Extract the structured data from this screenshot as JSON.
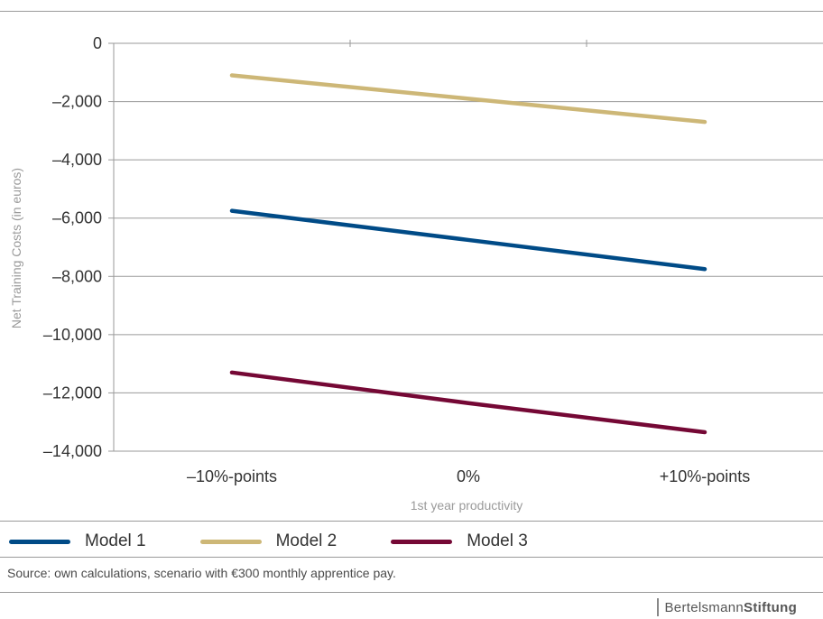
{
  "chart_data": {
    "type": "line",
    "categories": [
      "–10%-points",
      "0%",
      "+10%-points"
    ],
    "series": [
      {
        "name": "Model 1",
        "values": [
          -5750,
          -6750,
          -7750
        ],
        "color": "#004b87"
      },
      {
        "name": "Model 2",
        "values": [
          -1100,
          -1900,
          -2700
        ],
        "color": "#cdb777"
      },
      {
        "name": "Model 3",
        "values": [
          -11300,
          -12350,
          -13350
        ],
        "color": "#750835"
      }
    ],
    "yticks": [
      0,
      -2000,
      -4000,
      -6000,
      -8000,
      -10000,
      -12000,
      -14000
    ],
    "ytick_labels": [
      "0",
      "–2,000",
      "–4,000",
      "–6,000",
      "–8,000",
      "–10,000",
      "–12,000",
      "–14,000"
    ],
    "ylim": [
      -14000,
      0
    ],
    "xlabel": "1st year productivity",
    "ylabel": "Net Training Costs (in euros)",
    "grid": "horizontal",
    "legend_position": "bottom"
  },
  "source_text": "Source: own calculations, scenario with €300 monthly apprentice pay.",
  "logo": {
    "light": "Bertelsmann",
    "bold": "Stiftung"
  }
}
